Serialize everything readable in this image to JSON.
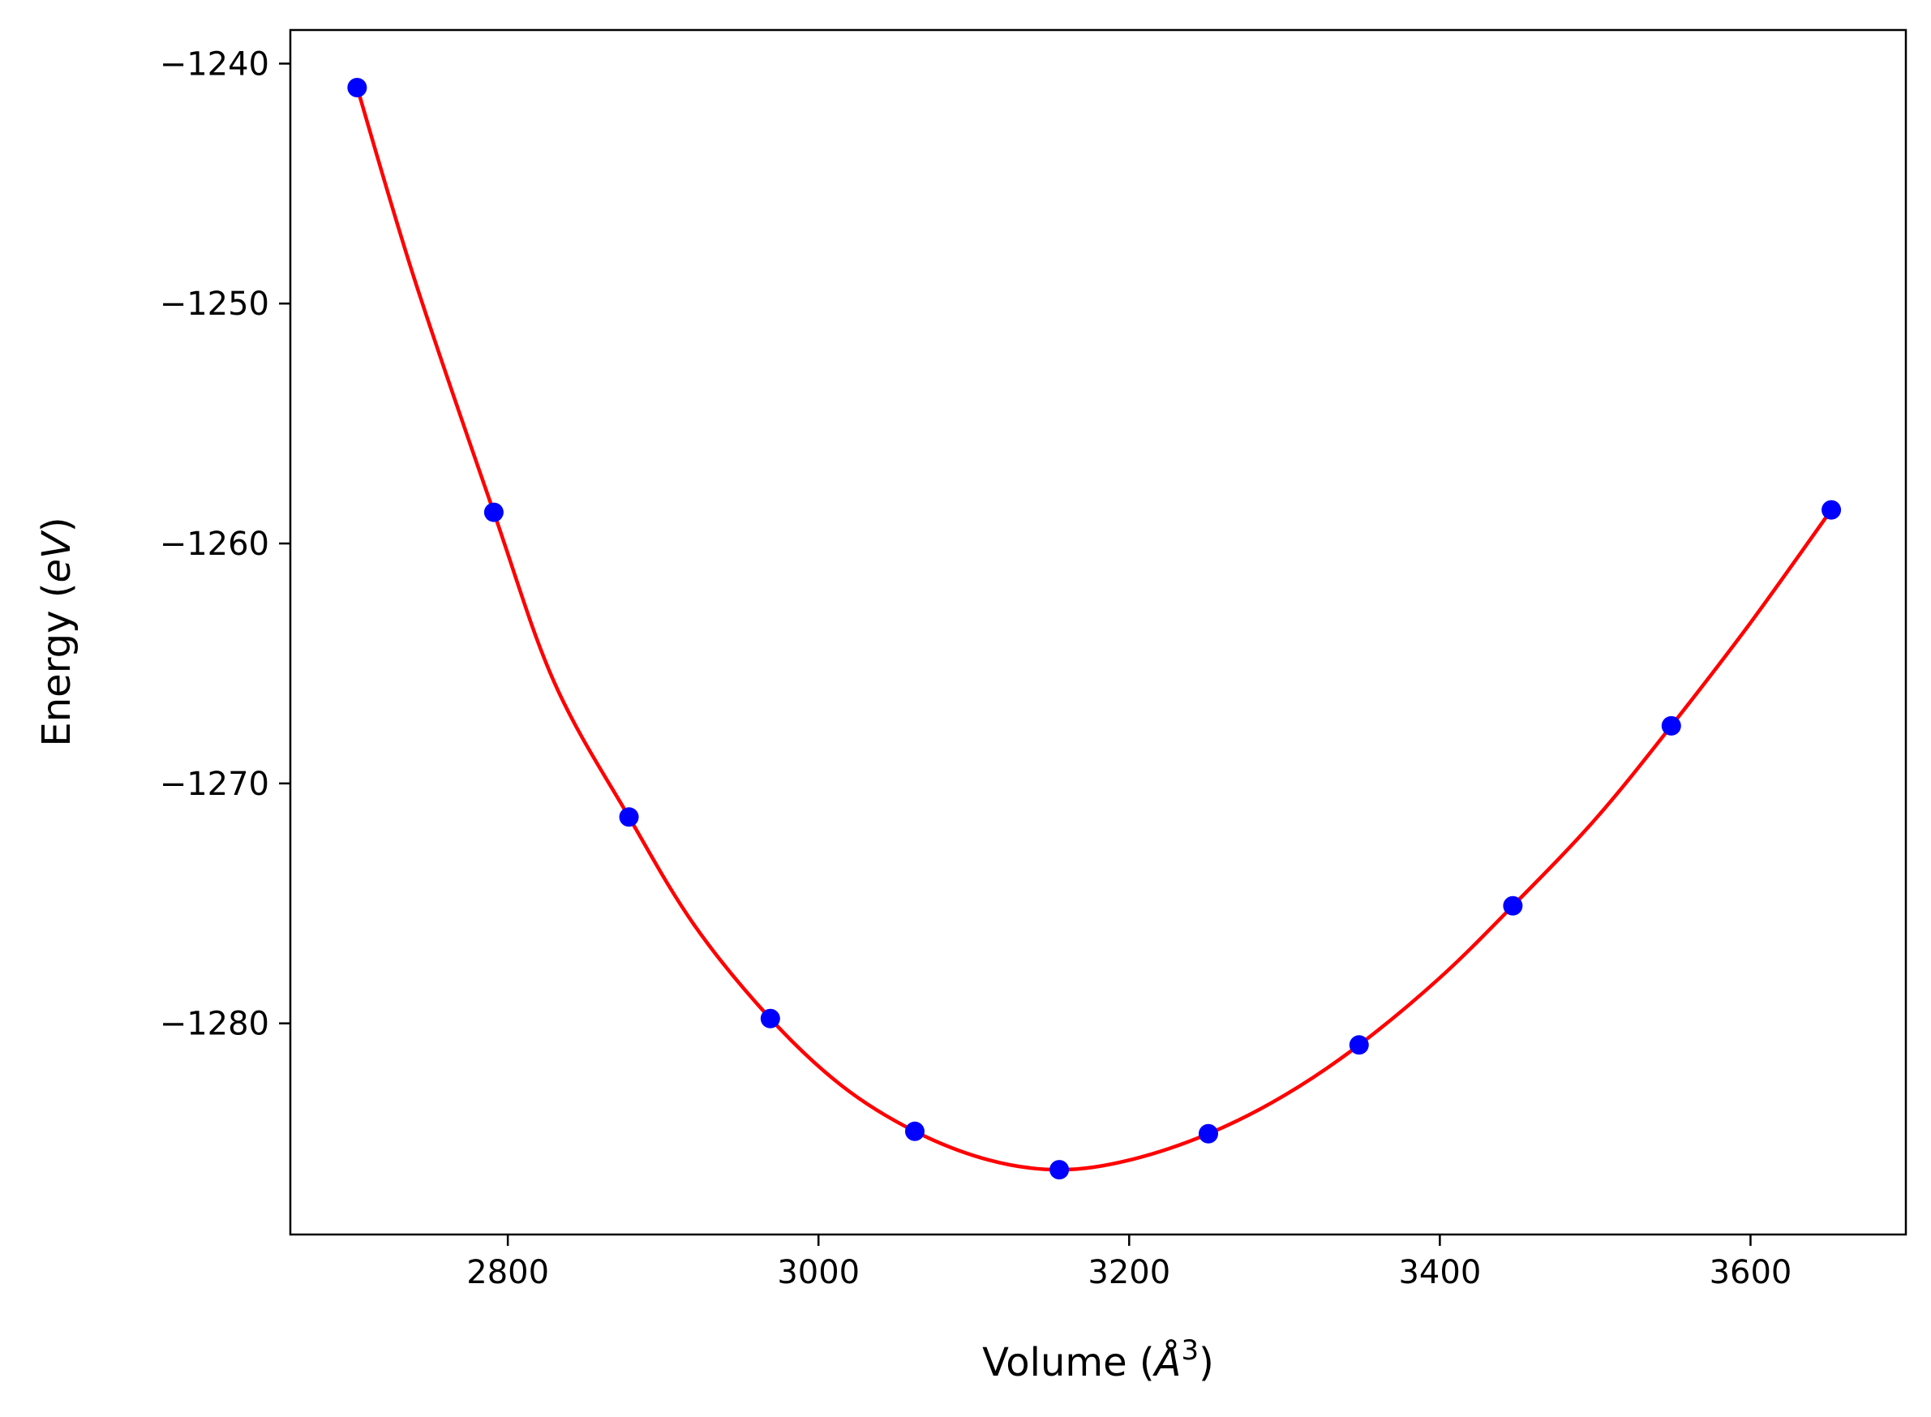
{
  "chart_data": {
    "type": "scatter",
    "title": "",
    "xlabel": {
      "prefix": "Volume (",
      "symbol": "Å",
      "superscript": "3",
      "suffix": ")"
    },
    "ylabel": {
      "prefix": "Energy (",
      "unit": "eV",
      "suffix": ")"
    },
    "xlim": [
      2660,
      3700
    ],
    "ylim": [
      -1288.8,
      -1238.6
    ],
    "xticks": [
      2800,
      3000,
      3200,
      3400,
      3600
    ],
    "yticks": [
      -1240,
      -1250,
      -1260,
      -1270,
      -1280
    ],
    "xtick_labels": [
      "2800",
      "3000",
      "3200",
      "3400",
      "3600"
    ],
    "ytick_labels": [
      "−1240",
      "−1250",
      "−1260",
      "−1270",
      "−1280"
    ],
    "grid": false,
    "series": [
      {
        "kind": "points",
        "color": "#0000ff",
        "x": [
          2703,
          2791,
          2878,
          2969,
          3062,
          3155,
          3251,
          3348,
          3447,
          3549,
          3652
        ],
        "y": [
          -1241.0,
          -1258.7,
          -1271.4,
          -1279.8,
          -1284.5,
          -1286.1,
          -1284.6,
          -1280.9,
          -1275.1,
          -1267.6,
          -1258.6
        ]
      },
      {
        "kind": "fit-curve",
        "color": "#ff0000",
        "x": [
          2703,
          2740,
          2791,
          2830,
          2878,
          2920,
          2969,
          3015,
          3062,
          3110,
          3155,
          3200,
          3251,
          3300,
          3348,
          3400,
          3447,
          3500,
          3549,
          3600,
          3652
        ],
        "y": [
          -1241.0,
          -1249.0,
          -1258.7,
          -1265.8,
          -1271.4,
          -1275.9,
          -1279.8,
          -1282.6,
          -1284.5,
          -1285.7,
          -1286.1,
          -1285.7,
          -1284.6,
          -1283.0,
          -1280.9,
          -1278.1,
          -1275.1,
          -1271.5,
          -1267.6,
          -1263.3,
          -1258.6
        ]
      }
    ]
  }
}
